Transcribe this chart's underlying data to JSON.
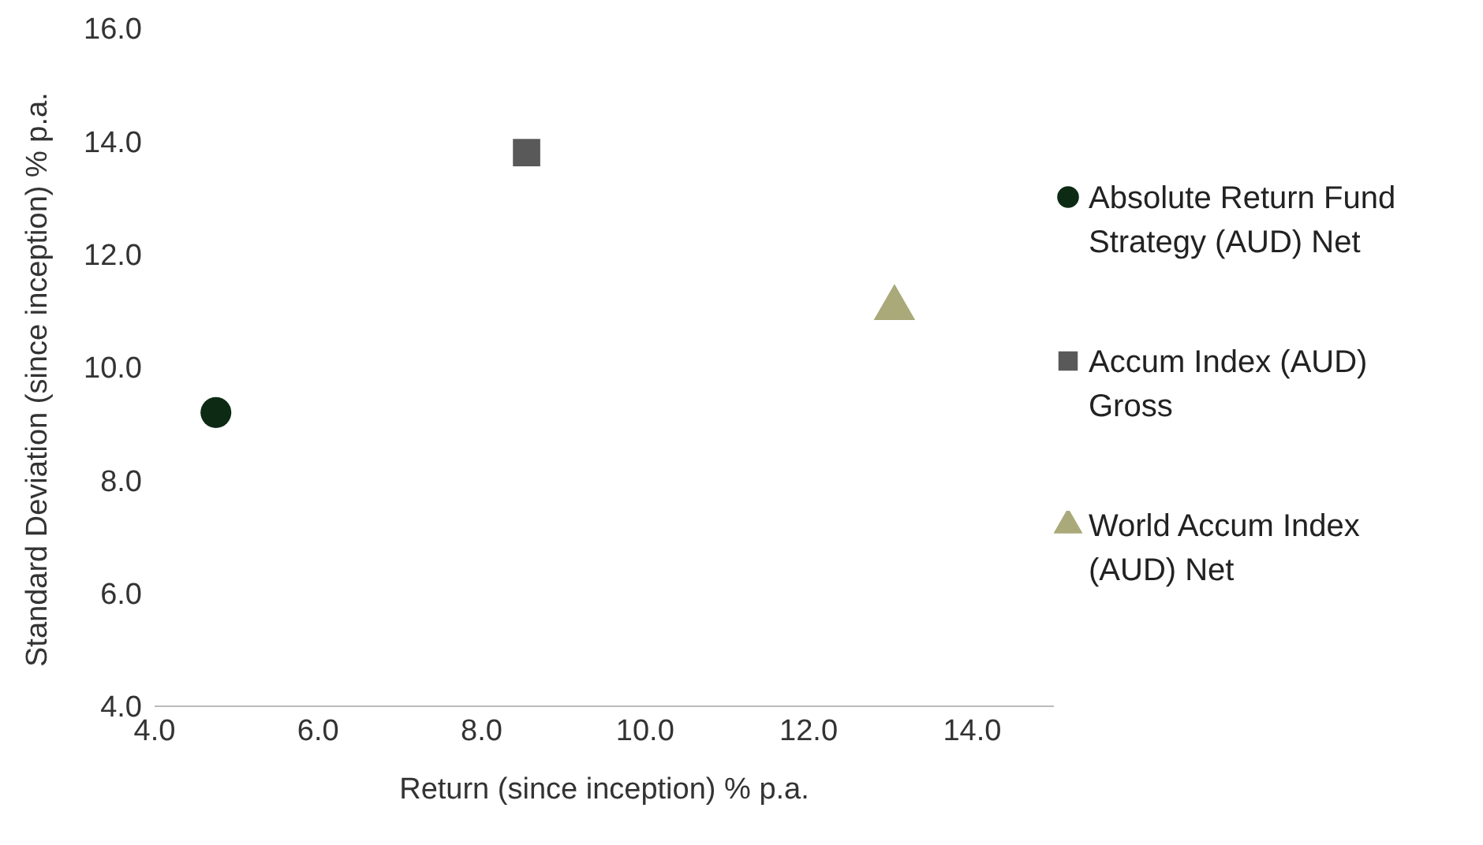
{
  "chart_data": {
    "type": "scatter",
    "xlabel": "Return (since inception) % p.a.",
    "ylabel": "Standard Deviation (since inception) % p.a.",
    "xlim": [
      4,
      15
    ],
    "xticks": [
      {
        "value": 4,
        "label": "4.0"
      },
      {
        "value": 6,
        "label": "6.0"
      },
      {
        "value": 8,
        "label": "8.0"
      },
      {
        "value": 10,
        "label": "10.0"
      },
      {
        "value": 12,
        "label": "12.0"
      },
      {
        "value": 14,
        "label": "14.0"
      }
    ],
    "ylim": [
      4,
      16
    ],
    "yticks": [
      {
        "value": 4,
        "label": "4.0"
      },
      {
        "value": 6,
        "label": "6.0"
      },
      {
        "value": 8,
        "label": "8.0"
      },
      {
        "value": 10,
        "label": "10.0"
      },
      {
        "value": 12,
        "label": "12.0"
      },
      {
        "value": 14,
        "label": "14.0"
      },
      {
        "value": 16,
        "label": "16.0"
      }
    ],
    "grid": false,
    "legend": "right",
    "series": [
      {
        "name": "Absolute Return Fund Strategy (AUD) Net",
        "color": "#0d2b14",
        "marker": "circle",
        "x": [
          4.75
        ],
        "values": [
          9.2
        ]
      },
      {
        "name": "Accum Index (AUD) Gross",
        "color": "#595959",
        "marker": "square",
        "x": [
          8.55
        ],
        "values": [
          13.8
        ]
      },
      {
        "name": "World Accum Index (AUD) Net",
        "color": "#a9a97a",
        "marker": "triangle",
        "x": [
          13.05
        ],
        "values": [
          11.05
        ]
      }
    ]
  }
}
